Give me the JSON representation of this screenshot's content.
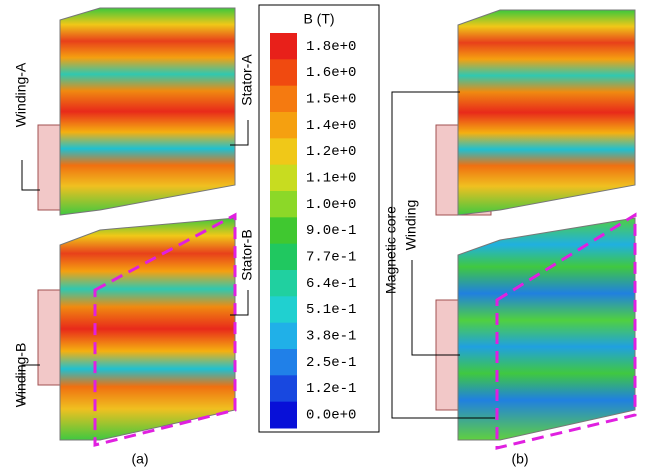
{
  "colorbar": {
    "title": "B (T)",
    "labels": [
      "1.8e+0",
      "1.6e+0",
      "1.5e+0",
      "1.4e+0",
      "1.2e+0",
      "1.1e+0",
      "1.0e+0",
      "9.0e-1",
      "7.7e-1",
      "6.4e-1",
      "5.1e-1",
      "3.8e-1",
      "2.5e-1",
      "1.2e-1",
      "0.0e+0"
    ]
  },
  "annotations": {
    "winding_a": "Winding-A",
    "stator_a": "Stator-A",
    "stator_b": "Stator-B",
    "winding_b": "Winding-B",
    "magnetic_core": "Magnetic core",
    "winding": "Winding"
  },
  "panels": {
    "a": "(a)",
    "b": "(b)"
  }
}
